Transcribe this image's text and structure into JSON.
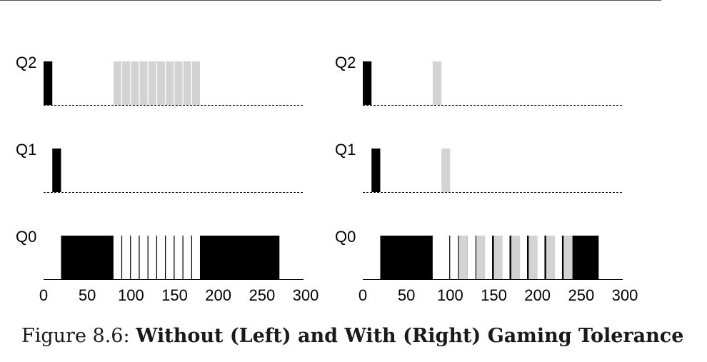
{
  "caption": {
    "prefix": "Figure 8.6:",
    "title": "Without (Left) and With (Right) Gaming Tolerance"
  },
  "colors": {
    "job_a": "#000000",
    "job_b": "#d3d3d3",
    "axis": "#000000",
    "rule": "#555555"
  },
  "chart_data": [
    {
      "type": "timeline",
      "panel": "left",
      "queues": [
        "Q2",
        "Q1",
        "Q0"
      ],
      "xlim": [
        0,
        300
      ],
      "xticks": [
        0,
        50,
        100,
        150,
        200,
        250,
        300
      ],
      "series": [
        {
          "color": "job_a",
          "segments": [
            {
              "queue": "Q2",
              "start": 0,
              "end": 10
            },
            {
              "queue": "Q1",
              "start": 10,
              "end": 20
            },
            {
              "queue": "Q0",
              "start": 20,
              "end": 80
            },
            {
              "queue": "Q0",
              "start": 89,
              "end": 90
            },
            {
              "queue": "Q0",
              "start": 99,
              "end": 100
            },
            {
              "queue": "Q0",
              "start": 109,
              "end": 110
            },
            {
              "queue": "Q0",
              "start": 119,
              "end": 120
            },
            {
              "queue": "Q0",
              "start": 129,
              "end": 130
            },
            {
              "queue": "Q0",
              "start": 139,
              "end": 140
            },
            {
              "queue": "Q0",
              "start": 149,
              "end": 150
            },
            {
              "queue": "Q0",
              "start": 159,
              "end": 160
            },
            {
              "queue": "Q0",
              "start": 169,
              "end": 170
            },
            {
              "queue": "Q0",
              "start": 179,
              "end": 270
            }
          ]
        },
        {
          "color": "job_b",
          "segments": [
            {
              "queue": "Q2",
              "start": 80,
              "end": 89
            },
            {
              "queue": "Q2",
              "start": 90,
              "end": 99
            },
            {
              "queue": "Q2",
              "start": 100,
              "end": 109
            },
            {
              "queue": "Q2",
              "start": 110,
              "end": 119
            },
            {
              "queue": "Q2",
              "start": 120,
              "end": 129
            },
            {
              "queue": "Q2",
              "start": 130,
              "end": 139
            },
            {
              "queue": "Q2",
              "start": 140,
              "end": 149
            },
            {
              "queue": "Q2",
              "start": 150,
              "end": 159
            },
            {
              "queue": "Q2",
              "start": 160,
              "end": 169
            },
            {
              "queue": "Q2",
              "start": 170,
              "end": 179
            }
          ]
        }
      ]
    },
    {
      "type": "timeline",
      "panel": "right",
      "queues": [
        "Q2",
        "Q1",
        "Q0"
      ],
      "xlim": [
        0,
        300
      ],
      "xticks": [
        0,
        50,
        100,
        150,
        200,
        250,
        300
      ],
      "series": [
        {
          "color": "job_a",
          "segments": [
            {
              "queue": "Q2",
              "start": 0,
              "end": 10
            },
            {
              "queue": "Q1",
              "start": 10,
              "end": 20
            },
            {
              "queue": "Q0",
              "start": 20,
              "end": 80
            },
            {
              "queue": "Q0",
              "start": 99,
              "end": 100
            },
            {
              "queue": "Q0",
              "start": 109,
              "end": 110
            },
            {
              "queue": "Q0",
              "start": 112,
              "end": 120
            },
            {
              "queue": "Q0",
              "start": 129,
              "end": 130
            },
            {
              "queue": "Q0",
              "start": 132,
              "end": 139
            },
            {
              "queue": "Q0",
              "start": 148,
              "end": 150
            },
            {
              "queue": "Q0",
              "start": 152,
              "end": 158
            },
            {
              "queue": "Q0",
              "start": 168,
              "end": 170
            },
            {
              "queue": "Q0",
              "start": 172,
              "end": 178
            },
            {
              "queue": "Q0",
              "start": 188,
              "end": 190
            },
            {
              "queue": "Q0",
              "start": 192,
              "end": 198
            },
            {
              "queue": "Q0",
              "start": 208,
              "end": 210
            },
            {
              "queue": "Q0",
              "start": 212,
              "end": 218
            },
            {
              "queue": "Q0",
              "start": 228,
              "end": 230
            },
            {
              "queue": "Q0",
              "start": 238,
              "end": 270
            }
          ]
        },
        {
          "color": "job_b",
          "segments": [
            {
              "queue": "Q2",
              "start": 80,
              "end": 90
            },
            {
              "queue": "Q1",
              "start": 90,
              "end": 100
            },
            {
              "queue": "Q0",
              "start": 110,
              "end": 120
            },
            {
              "queue": "Q0",
              "start": 130,
              "end": 140
            },
            {
              "queue": "Q0",
              "start": 150,
              "end": 160
            },
            {
              "queue": "Q0",
              "start": 170,
              "end": 180
            },
            {
              "queue": "Q0",
              "start": 190,
              "end": 200
            },
            {
              "queue": "Q0",
              "start": 210,
              "end": 220
            },
            {
              "queue": "Q0",
              "start": 230,
              "end": 240
            }
          ]
        }
      ]
    }
  ]
}
